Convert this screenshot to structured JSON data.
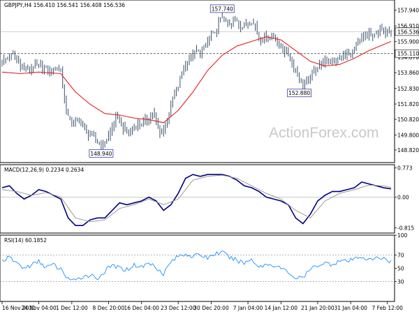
{
  "chart_data": [
    {
      "type": "candlestick",
      "panel": "price",
      "header": "GBPJPY,H4  156.410 156.541 156.408 156.536",
      "watermark": "ActionForex.com",
      "ylim": [
        148.0,
        158.6
      ],
      "y_ticks": [
        "157.940",
        "156.910",
        "155.900",
        "154.870",
        "153.860",
        "152.830",
        "151.820",
        "150.820",
        "149.800",
        "148.820"
      ],
      "y_tick_values": [
        157.94,
        156.91,
        155.9,
        154.87,
        153.86,
        152.83,
        151.82,
        150.82,
        149.8,
        148.82
      ],
      "price_path": [
        [
          0,
          154.6
        ],
        [
          3,
          155.0
        ],
        [
          5,
          154.3
        ],
        [
          7,
          154.0
        ],
        [
          9,
          154.3
        ],
        [
          11,
          154.2
        ],
        [
          13,
          153.9
        ],
        [
          15,
          154.2
        ],
        [
          16,
          154.0
        ],
        [
          17,
          152.0
        ],
        [
          18,
          151.0
        ],
        [
          19,
          150.5
        ],
        [
          21,
          150.8
        ],
        [
          23,
          150.0
        ],
        [
          25,
          149.6
        ],
        [
          27,
          149.1
        ],
        [
          28,
          149.3
        ],
        [
          29,
          149.7
        ],
        [
          30,
          150.3
        ],
        [
          31,
          150.9
        ],
        [
          32,
          150.8
        ],
        [
          33,
          150.2
        ],
        [
          35,
          150.0
        ],
        [
          37,
          150.5
        ],
        [
          39,
          150.7
        ],
        [
          40,
          150.9
        ],
        [
          41,
          151.3
        ],
        [
          42,
          150.6
        ],
        [
          43,
          149.8
        ],
        [
          44,
          150.2
        ],
        [
          45,
          150.9
        ],
        [
          46,
          151.7
        ],
        [
          47,
          152.5
        ],
        [
          48,
          153.0
        ],
        [
          49,
          153.9
        ],
        [
          50,
          154.3
        ],
        [
          51,
          154.8
        ],
        [
          52,
          155.0
        ],
        [
          53,
          155.3
        ],
        [
          54,
          155.1
        ],
        [
          55,
          155.4
        ],
        [
          56,
          155.9
        ],
        [
          57,
          156.4
        ],
        [
          58,
          156.3
        ],
        [
          59,
          157.1
        ],
        [
          60,
          157.5
        ],
        [
          61,
          157.1
        ],
        [
          62,
          156.9
        ],
        [
          63,
          157.2
        ],
        [
          64,
          157.3
        ],
        [
          65,
          156.8
        ],
        [
          66,
          156.9
        ],
        [
          67,
          157.2
        ],
        [
          68,
          157.2
        ],
        [
          69,
          156.9
        ],
        [
          70,
          156.2
        ],
        [
          71,
          156.0
        ],
        [
          72,
          156.3
        ],
        [
          73,
          156.1
        ],
        [
          74,
          156.3
        ],
        [
          75,
          155.8
        ],
        [
          76,
          155.5
        ],
        [
          77,
          155.3
        ],
        [
          78,
          155.0
        ],
        [
          79,
          154.5
        ],
        [
          80,
          154.0
        ],
        [
          81,
          153.5
        ],
        [
          82,
          153.1
        ],
        [
          83,
          153.2
        ],
        [
          84,
          153.6
        ],
        [
          85,
          153.9
        ],
        [
          86,
          154.3
        ],
        [
          87,
          154.5
        ],
        [
          88,
          154.6
        ],
        [
          89,
          154.5
        ],
        [
          90,
          154.6
        ],
        [
          91,
          154.7
        ],
        [
          92,
          154.9
        ],
        [
          93,
          154.9
        ],
        [
          94,
          155.1
        ],
        [
          95,
          155.0
        ],
        [
          96,
          155.4
        ],
        [
          97,
          155.7
        ],
        [
          98,
          156.1
        ],
        [
          99,
          156.2
        ],
        [
          100,
          156.4
        ],
        [
          101,
          156.1
        ],
        [
          102,
          156.5
        ],
        [
          103,
          156.7
        ],
        [
          104,
          156.4
        ],
        [
          105,
          156.7
        ],
        [
          106,
          156.5
        ]
      ],
      "moving_average": [
        [
          0,
          153.9
        ],
        [
          5,
          153.8
        ],
        [
          10,
          153.9
        ],
        [
          16,
          153.8
        ],
        [
          20,
          152.6
        ],
        [
          24,
          151.8
        ],
        [
          28,
          151.2
        ],
        [
          32,
          151.1
        ],
        [
          36,
          150.9
        ],
        [
          40,
          150.8
        ],
        [
          44,
          150.6
        ],
        [
          48,
          151.4
        ],
        [
          52,
          152.6
        ],
        [
          56,
          154.0
        ],
        [
          60,
          155.0
        ],
        [
          64,
          155.6
        ],
        [
          68,
          155.9
        ],
        [
          72,
          156.2
        ],
        [
          76,
          156.0
        ],
        [
          80,
          155.3
        ],
        [
          84,
          154.6
        ],
        [
          88,
          154.3
        ],
        [
          92,
          154.4
        ],
        [
          96,
          154.8
        ],
        [
          100,
          155.3
        ],
        [
          104,
          155.7
        ],
        [
          106,
          155.9
        ]
      ],
      "current_price": "156.536",
      "current_price_value": 156.536,
      "reference_level": "155.110",
      "reference_level_value": 155.11,
      "annotations": [
        {
          "text": "157.740",
          "bar": 60,
          "value": 157.74
        },
        {
          "text": "152.880",
          "bar": 81,
          "value": 152.88
        },
        {
          "text": "148.940",
          "bar": 27,
          "value": 148.94
        }
      ],
      "colors": {
        "candles": "#38506c",
        "moving_average": "#e02020",
        "label_box": "#3b3bb0"
      }
    },
    {
      "type": "line",
      "panel": "macd",
      "header": "MACD(12,26,9) 0.2234 0.2634",
      "ylim": [
        -0.95,
        0.86
      ],
      "y_ticks": [
        "0.773",
        "0.00",
        "-0.815"
      ],
      "y_tick_values": [
        0.773,
        0.0,
        -0.815
      ],
      "series": [
        {
          "role": "macd",
          "color": "#000080",
          "points": [
            [
              0,
              0.25
            ],
            [
              2,
              0.3
            ],
            [
              4,
              0.1
            ],
            [
              6,
              -0.05
            ],
            [
              8,
              0.05
            ],
            [
              10,
              0.2
            ],
            [
              12,
              0.15
            ],
            [
              14,
              0.05
            ],
            [
              16,
              -0.05
            ],
            [
              18,
              -0.55
            ],
            [
              20,
              -0.75
            ],
            [
              22,
              -0.75
            ],
            [
              24,
              -0.6
            ],
            [
              26,
              -0.55
            ],
            [
              28,
              -0.55
            ],
            [
              30,
              -0.35
            ],
            [
              32,
              -0.15
            ],
            [
              34,
              -0.2
            ],
            [
              36,
              -0.15
            ],
            [
              38,
              -0.1
            ],
            [
              40,
              0.0
            ],
            [
              42,
              -0.1
            ],
            [
              44,
              -0.35
            ],
            [
              46,
              -0.2
            ],
            [
              48,
              0.1
            ],
            [
              50,
              0.5
            ],
            [
              52,
              0.6
            ],
            [
              54,
              0.55
            ],
            [
              56,
              0.6
            ],
            [
              58,
              0.6
            ],
            [
              60,
              0.6
            ],
            [
              62,
              0.55
            ],
            [
              64,
              0.45
            ],
            [
              66,
              0.3
            ],
            [
              68,
              0.25
            ],
            [
              70,
              0.15
            ],
            [
              72,
              0.0
            ],
            [
              74,
              -0.05
            ],
            [
              76,
              -0.1
            ],
            [
              78,
              -0.2
            ],
            [
              80,
              -0.55
            ],
            [
              82,
              -0.7
            ],
            [
              84,
              -0.45
            ],
            [
              86,
              -0.1
            ],
            [
              88,
              0.05
            ],
            [
              90,
              0.15
            ],
            [
              92,
              0.15
            ],
            [
              94,
              0.2
            ],
            [
              96,
              0.25
            ],
            [
              98,
              0.4
            ],
            [
              100,
              0.35
            ],
            [
              102,
              0.3
            ],
            [
              104,
              0.25
            ],
            [
              106,
              0.22
            ]
          ]
        },
        {
          "role": "signal",
          "color": "#9a9a9a",
          "points": [
            [
              0,
              0.2
            ],
            [
              4,
              0.15
            ],
            [
              8,
              0.05
            ],
            [
              12,
              0.12
            ],
            [
              16,
              0.0
            ],
            [
              20,
              -0.55
            ],
            [
              24,
              -0.65
            ],
            [
              28,
              -0.6
            ],
            [
              32,
              -0.3
            ],
            [
              36,
              -0.2
            ],
            [
              40,
              -0.05
            ],
            [
              44,
              -0.2
            ],
            [
              48,
              -0.05
            ],
            [
              52,
              0.45
            ],
            [
              56,
              0.55
            ],
            [
              60,
              0.58
            ],
            [
              64,
              0.5
            ],
            [
              68,
              0.3
            ],
            [
              72,
              0.1
            ],
            [
              76,
              -0.05
            ],
            [
              80,
              -0.35
            ],
            [
              84,
              -0.55
            ],
            [
              88,
              -0.1
            ],
            [
              92,
              0.1
            ],
            [
              96,
              0.2
            ],
            [
              100,
              0.32
            ],
            [
              104,
              0.3
            ],
            [
              106,
              0.26
            ]
          ]
        }
      ],
      "colors": {
        "macd": "#000080",
        "signal": "#9a9a9a",
        "zero_line": "#aaaaaa"
      }
    },
    {
      "type": "line",
      "panel": "rsi",
      "header": "RSI(14) 60.1852",
      "ylim": [
        0,
        100
      ],
      "y_ticks": [
        "100",
        "70",
        "50",
        "30"
      ],
      "y_tick_values": [
        100,
        70,
        50,
        30
      ],
      "reference_lines": [
        70,
        30
      ],
      "series": [
        {
          "role": "rsi",
          "color": "#1e90ff",
          "points": [
            [
              0,
              62
            ],
            [
              2,
              66
            ],
            [
              4,
              58
            ],
            [
              6,
              50
            ],
            [
              8,
              55
            ],
            [
              10,
              60
            ],
            [
              12,
              52
            ],
            [
              14,
              55
            ],
            [
              16,
              48
            ],
            [
              18,
              35
            ],
            [
              20,
              30
            ],
            [
              22,
              38
            ],
            [
              24,
              40
            ],
            [
              26,
              35
            ],
            [
              28,
              45
            ],
            [
              30,
              55
            ],
            [
              32,
              50
            ],
            [
              34,
              48
            ],
            [
              36,
              55
            ],
            [
              38,
              52
            ],
            [
              40,
              58
            ],
            [
              42,
              52
            ],
            [
              44,
              42
            ],
            [
              46,
              60
            ],
            [
              48,
              68
            ],
            [
              50,
              72
            ],
            [
              52,
              68
            ],
            [
              54,
              70
            ],
            [
              56,
              66
            ],
            [
              58,
              72
            ],
            [
              60,
              74
            ],
            [
              62,
              66
            ],
            [
              64,
              62
            ],
            [
              66,
              58
            ],
            [
              68,
              64
            ],
            [
              70,
              52
            ],
            [
              72,
              56
            ],
            [
              74,
              55
            ],
            [
              76,
              50
            ],
            [
              78,
              44
            ],
            [
              80,
              35
            ],
            [
              82,
              36
            ],
            [
              84,
              48
            ],
            [
              86,
              55
            ],
            [
              88,
              58
            ],
            [
              90,
              56
            ],
            [
              92,
              62
            ],
            [
              94,
              60
            ],
            [
              96,
              64
            ],
            [
              98,
              68
            ],
            [
              100,
              62
            ],
            [
              102,
              65
            ],
            [
              104,
              66
            ],
            [
              106,
              60
            ]
          ]
        }
      ],
      "colors": {
        "rsi": "#1e90ff",
        "reference": "#999999"
      }
    }
  ],
  "x_axis": {
    "tick_labels": [
      "16 Nov 2021",
      "24 Nov 04:00",
      "1 Dec 12:00",
      "8 Dec 20:00",
      "16 Dec 04:00",
      "23 Dec 12:00",
      "30 Dec 20:00",
      "7 Jan 04:00",
      "14 Jan 12:00",
      "21 Jan 20:00",
      "31 Jan 04:00",
      "7 Feb 12:00"
    ],
    "tick_bars": [
      0,
      10,
      19,
      29,
      38,
      48,
      57,
      67,
      76,
      86,
      95,
      105
    ]
  }
}
